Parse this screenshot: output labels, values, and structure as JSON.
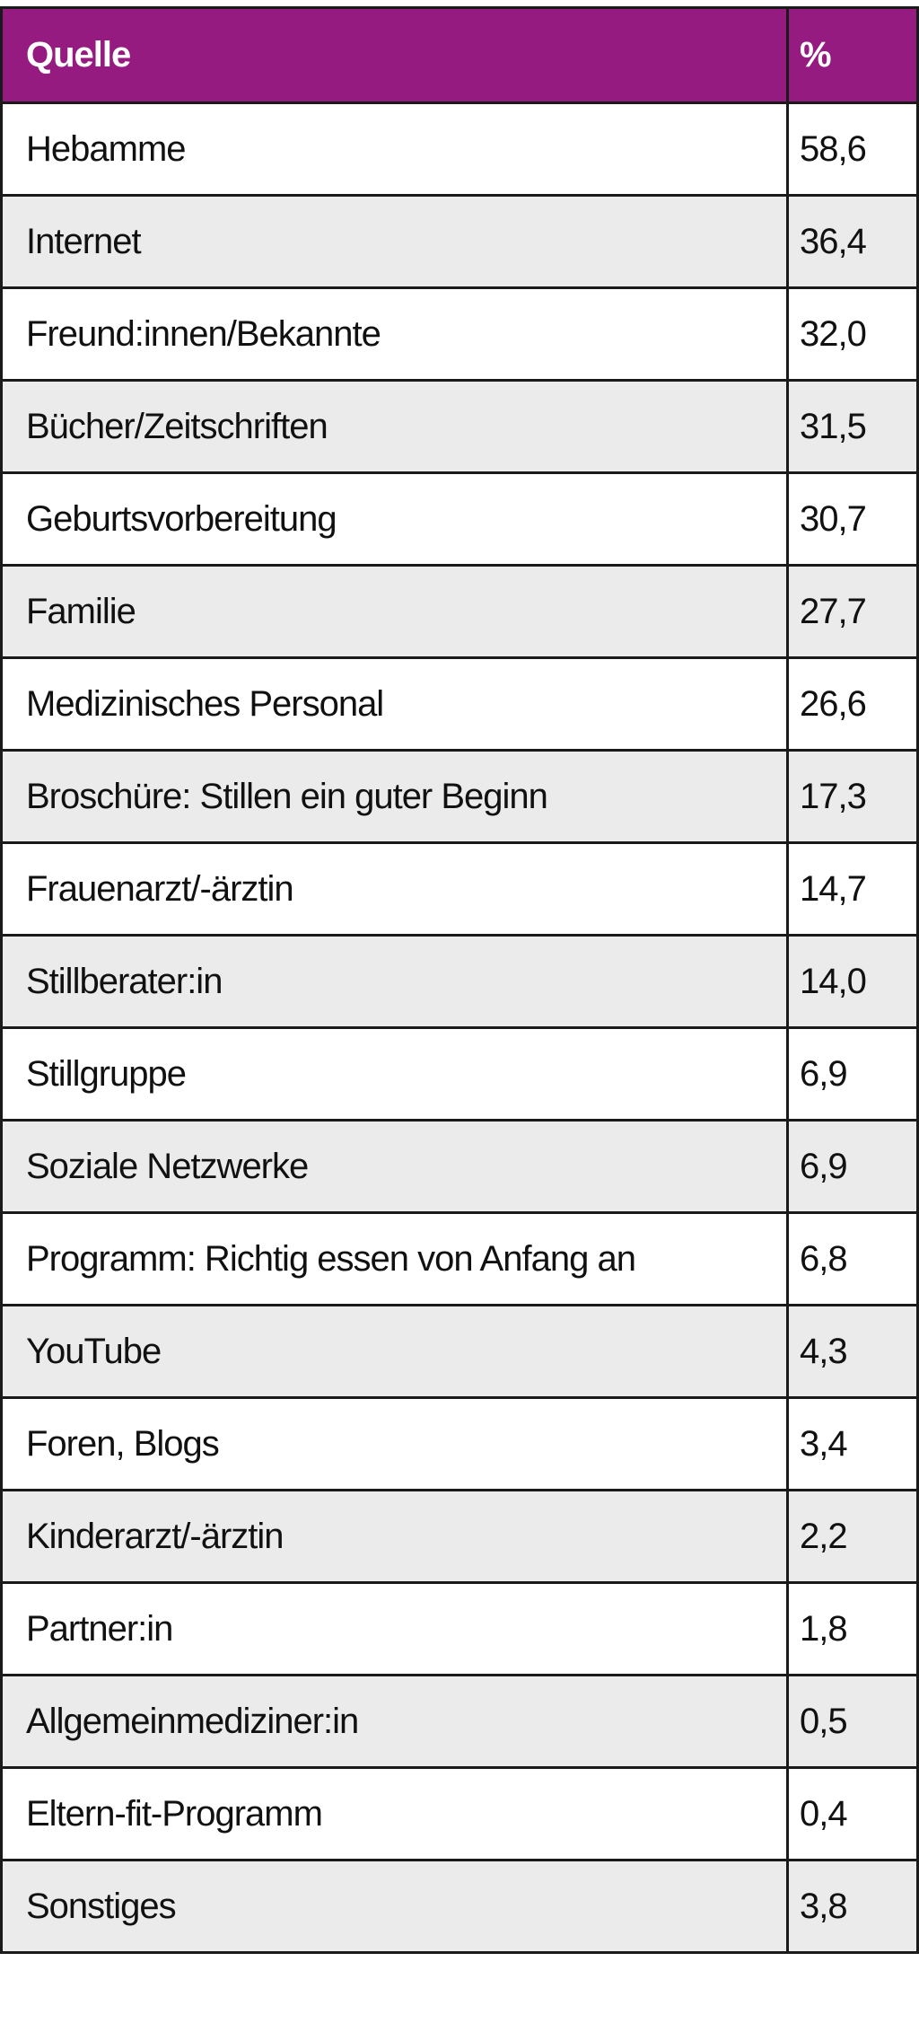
{
  "header": {
    "source": "Quelle",
    "percent": "%"
  },
  "rows": [
    {
      "source": "Hebamme",
      "percent": "58,6"
    },
    {
      "source": "Internet",
      "percent": "36,4"
    },
    {
      "source": "Freund:innen/Bekannte",
      "percent": "32,0"
    },
    {
      "source": "Bücher/Zeitschriften",
      "percent": "31,5"
    },
    {
      "source": "Geburtsvorbereitung",
      "percent": "30,7"
    },
    {
      "source": "Familie",
      "percent": "27,7"
    },
    {
      "source": "Medizinisches Personal",
      "percent": "26,6"
    },
    {
      "source": "Broschüre: Stillen ein guter Beginn",
      "percent": "17,3"
    },
    {
      "source": "Frauenarzt/-ärztin",
      "percent": "14,7"
    },
    {
      "source": "Stillberater:in",
      "percent": "14,0"
    },
    {
      "source": "Stillgruppe",
      "percent": "6,9"
    },
    {
      "source": "Soziale Netzwerke",
      "percent": "6,9"
    },
    {
      "source": "Programm: Richtig essen von Anfang an",
      "percent": "6,8"
    },
    {
      "source": "YouTube",
      "percent": "4,3"
    },
    {
      "source": "Foren, Blogs",
      "percent": "3,4"
    },
    {
      "source": "Kinderarzt/-ärztin",
      "percent": "2,2"
    },
    {
      "source": "Partner:in",
      "percent": "1,8"
    },
    {
      "source": "Allgemeinmediziner:in",
      "percent": "0,5"
    },
    {
      "source": "Eltern-fit-Programm",
      "percent": "0,4"
    },
    {
      "source": "Sonstiges",
      "percent": "3,8"
    }
  ],
  "colors": {
    "header_bg": "#951b80",
    "alt_row": "#ebebeb"
  }
}
